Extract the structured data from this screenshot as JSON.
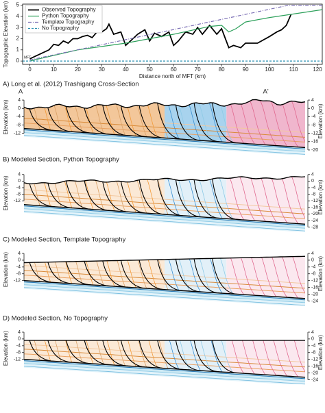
{
  "chart_data": [
    {
      "type": "line",
      "ylabel": "Topographic Elevation (km)",
      "xlabel": "Distance north of MFT (km)",
      "annotation": "MFT",
      "xlim": [
        -3,
        122
      ],
      "xticks": [
        0,
        10,
        20,
        30,
        40,
        50,
        60,
        70,
        80,
        90,
        100,
        110,
        120
      ],
      "ylim": [
        -0.3,
        5.1
      ],
      "yticks": [
        0,
        1,
        2,
        3,
        4,
        5
      ],
      "legend": "upper left",
      "series": [
        {
          "name": "Observed Topography",
          "color": "#000000",
          "linestyle": "solid",
          "x": [
            0,
            2,
            4,
            6,
            8,
            10,
            12,
            14,
            16,
            18,
            20,
            22,
            24,
            26,
            28,
            30,
            32,
            33,
            35,
            38,
            40,
            43,
            45,
            48,
            50,
            52,
            55,
            58,
            60,
            62,
            65,
            68,
            70,
            72,
            75,
            78,
            80,
            83,
            85,
            88,
            90,
            95,
            100,
            103,
            105,
            107,
            109
          ],
          "values": [
            0.2,
            0.4,
            0.6,
            0.8,
            1.0,
            1.5,
            1.4,
            1.8,
            1.6,
            2.0,
            2.0,
            2.2,
            2.3,
            2.1,
            2.6,
            2.6,
            2.9,
            3.3,
            2.4,
            2.6,
            1.4,
            2.0,
            2.4,
            2.8,
            1.8,
            2.5,
            2.2,
            2.6,
            1.4,
            1.8,
            2.6,
            2.4,
            3.0,
            2.4,
            3.2,
            2.4,
            2.9,
            1.2,
            1.4,
            1.2,
            1.6,
            1.6,
            2.2,
            2.6,
            2.8,
            3.2,
            4.2
          ]
        },
        {
          "name": "Python Topography",
          "color": "#2ca05a",
          "linestyle": "solid",
          "x": [
            0,
            20,
            40,
            60,
            75,
            80,
            83,
            86,
            90,
            100,
            122
          ],
          "values": [
            0,
            1.0,
            1.6,
            2.4,
            3.1,
            3.2,
            2.6,
            2.9,
            3.5,
            3.9,
            4.6
          ]
        },
        {
          "name": "Template Topography",
          "color": "#7b6fb5",
          "linestyle": "dashdot",
          "x": [
            0,
            108,
            122
          ],
          "values": [
            0.1,
            5,
            5
          ]
        },
        {
          "name": "No Topography",
          "color": "#2a8fb0",
          "linestyle": "dashed",
          "x": [
            -3,
            122
          ],
          "values": [
            0,
            0
          ]
        }
      ]
    },
    {
      "type": "cross-section",
      "title": "A) Long et al. (2012) Trashigang Cross-Section",
      "labels": [
        "A",
        "A'"
      ],
      "ylabel": "Elevation (km)",
      "ylim": [
        -21,
        6
      ],
      "yticks": [
        4,
        0,
        -4,
        -8,
        -12
      ],
      "y2lim": [
        -21,
        6
      ],
      "y2ticks": [
        4,
        0,
        -4,
        -8,
        -12,
        -16,
        -20
      ]
    },
    {
      "type": "cross-section",
      "title": "B) Modeled Section, Python Topography",
      "ylabel": "Elevation (km)",
      "ylim": [
        -29,
        6
      ],
      "yticks": [
        4,
        0,
        -4,
        -8,
        -12
      ],
      "y2lim": [
        -29,
        6
      ],
      "y2ticks": [
        4,
        0,
        -4,
        -8,
        -12,
        -16,
        -20,
        -24,
        -28
      ]
    },
    {
      "type": "cross-section",
      "title": "C) Modeled Section, Template Topography",
      "ylabel": "Elevation (km)",
      "ylim": [
        -25,
        6
      ],
      "yticks": [
        4,
        0,
        -4,
        -8,
        -12
      ],
      "y2lim": [
        -25,
        6
      ],
      "y2ticks": [
        4,
        0,
        -4,
        -8,
        -12,
        -16,
        -20,
        -24
      ]
    },
    {
      "type": "cross-section",
      "title": "D) Modeled Section, No Topography",
      "ylabel": "Elevation (km)",
      "ylim": [
        -25,
        6
      ],
      "yticks": [
        4,
        0,
        -4,
        -8,
        -12
      ],
      "y2lim": [
        -25,
        6
      ],
      "y2ticks": [
        4,
        0,
        -4,
        -8,
        -12,
        -16,
        -20,
        -24
      ]
    }
  ]
}
